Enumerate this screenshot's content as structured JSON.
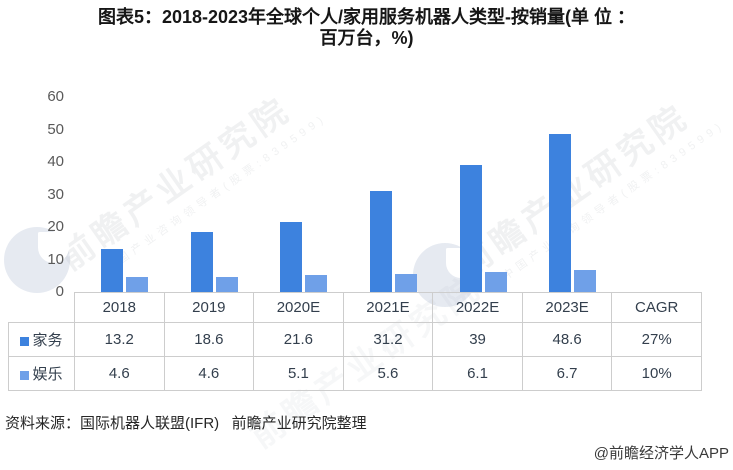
{
  "title": {
    "line1": "图表5：2018-2023年全球个人/家用服务机器人类型-按销量(单 位 ：",
    "line2": "百万台，%)"
  },
  "chart_data": {
    "type": "bar",
    "title": "图表5：2018-2023年全球个人/家用服务机器人类型-按销量(单位：百万台，%)",
    "categories": [
      "2018",
      "2019",
      "2020E",
      "2021E",
      "2022E",
      "2023E"
    ],
    "series": [
      {
        "name": "家务",
        "color": "#3D82DE",
        "values": [
          13.2,
          18.6,
          21.6,
          31.2,
          39,
          48.6
        ],
        "cagr": "27%"
      },
      {
        "name": "娱乐",
        "color": "#6FA0E8",
        "values": [
          4.6,
          4.6,
          5.1,
          5.6,
          6.1,
          6.7
        ],
        "cagr": "10%"
      }
    ],
    "xlabel": "",
    "ylabel": "",
    "ylim": [
      0,
      60
    ],
    "yticks": [
      0,
      10,
      20,
      30,
      40,
      50,
      60
    ],
    "grid": false,
    "legend_position": "table-left"
  },
  "table": {
    "columns": [
      "",
      "2018",
      "2019",
      "2020E",
      "2021E",
      "2022E",
      "2023E",
      "CAGR"
    ],
    "rows": [
      {
        "label": "家务",
        "marker_color": "#3D82DE",
        "cells": [
          "13.2",
          "18.6",
          "21.6",
          "31.2",
          "39",
          "48.6",
          "27%"
        ]
      },
      {
        "label": "娱乐",
        "marker_color": "#6FA0E8",
        "cells": [
          "4.6",
          "4.6",
          "5.1",
          "5.6",
          "6.1",
          "6.7",
          "10%"
        ]
      }
    ]
  },
  "footer": {
    "source": "资料来源：国际机器人联盟(IFR)   前瞻产业研究院整理",
    "credit": "@前瞻经济学人APP"
  },
  "watermark": {
    "text": "前瞻产业研究院",
    "subtext": "中国产业咨询领导者(股票:839599)"
  },
  "colors": {
    "series_dark": "#3D82DE",
    "series_light": "#6FA0E8",
    "axis_text": "#595959",
    "table_border": "#cdcdcd",
    "table_text": "#333F4D"
  }
}
